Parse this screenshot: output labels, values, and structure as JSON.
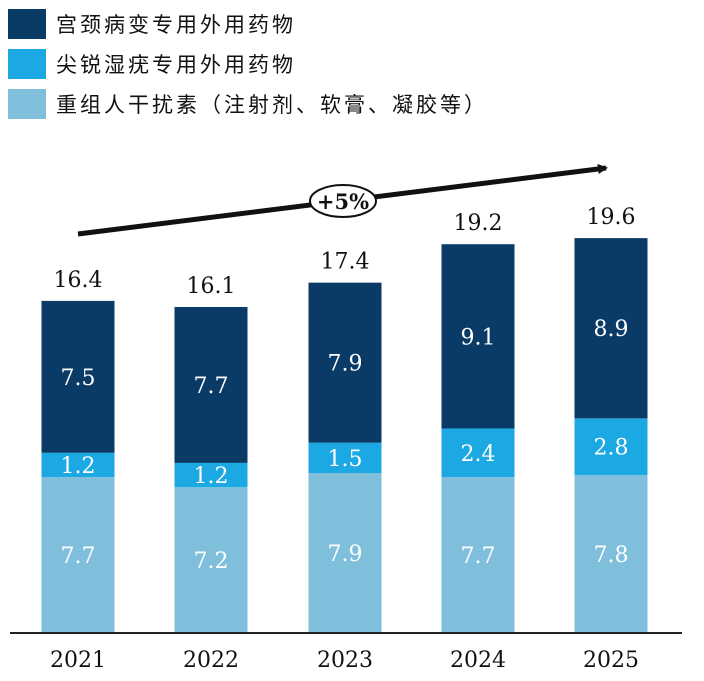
{
  "chart_data": {
    "type": "bar",
    "stacked": true,
    "categories": [
      "2021",
      "2022",
      "2023",
      "2024",
      "2025"
    ],
    "series": [
      {
        "name": "重组人干扰素（注射剂、软膏、凝胶等）",
        "color": "#7fbfdc",
        "values": [
          7.7,
          7.2,
          7.9,
          7.7,
          7.8
        ]
      },
      {
        "name": "尖锐湿疣专用外用药物",
        "color": "#1ca8e3",
        "values": [
          1.2,
          1.2,
          1.5,
          2.4,
          2.8
        ]
      },
      {
        "name": "宫颈病变专用外用药物",
        "color": "#0a3a66",
        "values": [
          7.5,
          7.7,
          7.9,
          9.1,
          8.9
        ]
      }
    ],
    "totals": [
      "16.4",
      "16.1",
      "17.4",
      "19.2",
      "19.6"
    ],
    "ylim": [
      0,
      21
    ],
    "annotation": "+5%",
    "legend_position": "top-left",
    "grid": false
  }
}
